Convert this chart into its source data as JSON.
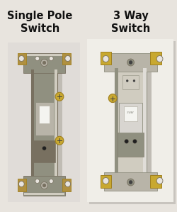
{
  "title_left_line1": "Single Pole",
  "title_left_line2": "Switch",
  "title_right_line1": "3 Way",
  "title_right_line2": "Switch",
  "bg_color": "#e8e4de",
  "bg_right": "#d8d4ce",
  "text_color": "#111111",
  "title_fontsize": 10.5,
  "fig_width": 2.5,
  "fig_height": 2.99,
  "shadow_color": "#b0aca8"
}
